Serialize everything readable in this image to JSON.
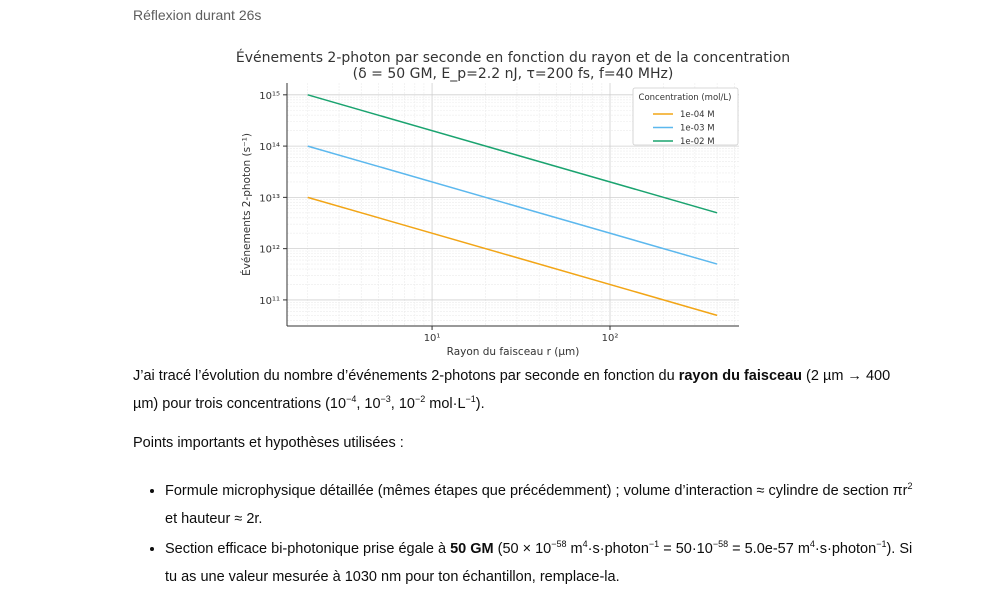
{
  "reasoning_label": "Réflexion durant 26s",
  "chart_data": {
    "type": "line",
    "title": "Événements 2-photon par seconde en fonction du rayon et de la concentration",
    "subtitle": "(δ = 50 GM, E_p=2.2 nJ, τ=200 fs, f=40 MHz)",
    "xlabel": "Rayon du faisceau r (µm)",
    "ylabel": "Événements 2-photon (s⁻¹)",
    "xscale": "log",
    "yscale": "log",
    "xlim": [
      1.53,
      531
    ],
    "ylim": [
      31000000000.0,
      1700000000000000.0
    ],
    "xticks": [
      {
        "value": 10,
        "label": "10¹"
      },
      {
        "value": 100,
        "label": "10²"
      }
    ],
    "yticks": [
      {
        "value": 100000000000.0,
        "label": "10¹¹"
      },
      {
        "value": 1000000000000.0,
        "label": "10¹²"
      },
      {
        "value": 10000000000000.0,
        "label": "10¹³"
      },
      {
        "value": 100000000000000.0,
        "label": "10¹⁴"
      },
      {
        "value": 1000000000000000.0,
        "label": "10¹⁵"
      }
    ],
    "grid": true,
    "legend": {
      "title": "Concentration (mol/L)",
      "placement": "top-right"
    },
    "x": [
      2,
      400
    ],
    "series": [
      {
        "name": "1e-04 M",
        "color": "#f2a516",
        "values": [
          10000000000000.0,
          50000000000.0
        ]
      },
      {
        "name": "1e-03 M",
        "color": "#5cb8ee",
        "values": [
          100000000000000.0,
          500000000000.0
        ]
      },
      {
        "name": "1e-02 M",
        "color": "#1aa36f",
        "values": [
          1000000000000000.0,
          5000000000000.0
        ]
      }
    ]
  },
  "message": {
    "p1_a": "J’ai tracé l’évolution du nombre d’événements 2-photons par seconde en fonction du ",
    "p1_bold": "rayon du faisceau",
    "p1_b": " (2 µm → 400 µm) pour trois concentrations (10",
    "p1_e1": "−4",
    "p1_c": ", 10",
    "p1_e2": "−3",
    "p1_d": ", 10",
    "p1_e3": "−2",
    "p1_f": " mol·L",
    "p1_e4": "−1",
    "p1_g": ").",
    "p2": "Points importants et hypothèses utilisées :",
    "b1_a": "Formule microphysique détaillée (mêmes étapes que précédemment) ; volume d’interaction ≈ cylindre de section πr",
    "b1_sup": "2",
    "b1_b": " et hauteur ≈ 2r.",
    "b2_a": "Section efficace bi-photonique prise égale à ",
    "b2_bold": "50 GM",
    "b2_b": " (50 × 10",
    "b2_e1": "−58",
    "b2_c": " m",
    "b2_e2": "4",
    "b2_d": "·s·photon",
    "b2_e3": "−1",
    "b2_e": " = 50·10",
    "b2_e4": "−58",
    "b2_f": " = 5.0e-57 m",
    "b2_e5": "4",
    "b2_g": "·s·photon",
    "b2_e6": "−1",
    "b2_h": "). Si tu as une valeur mesurée à 1030 nm pour ton échantillon, remplace-la."
  }
}
